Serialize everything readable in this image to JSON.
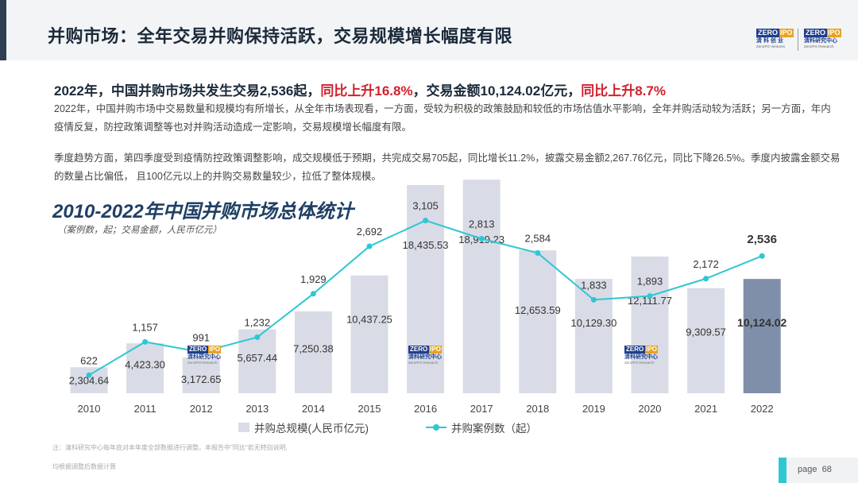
{
  "header": {
    "title": "并购市场：全年交易并购保持活跃，交易规模增长幅度有限",
    "logo_left": {
      "mark_a": "ZERO",
      "mark_b": "IPO",
      "cn": "清 科 创 业",
      "en": "ZeroIPO Ventures"
    },
    "logo_right": {
      "mark_a": "ZERO",
      "mark_b": "IPO",
      "cn": "清科研究中心",
      "en": "ZeroIPO Research"
    }
  },
  "headline": {
    "part1": "2022年，中国并购市场共发生交易2,536起，",
    "part2": "同比上升16.8%",
    "part3": "，交易金额10,124.02亿元，",
    "part4": "同比上升8.7%"
  },
  "paragraphs": {
    "p1": "2022年，中国并购市场中交易数量和规模均有所增长，从全年市场表现看，一方面，受较为积极的政策鼓励和较低的市场估值水平影响，全年并购活动较为活跃；另一方面，年内疫情反复，防控政策调整等也对并购活动造成一定影响，交易规模增长幅度有限。",
    "p2": "季度趋势方面，第四季度受到疫情防控政策调整影响，成交规模低于预期，共完成交易705起，同比增长11.2%，披露交易金额2,267.76亿元，同比下降26.5%。季度内披露金额交易的数量占比偏低， 且100亿元以上的并购交易数量较少，拉低了整体规模。"
  },
  "watermark": {
    "mark_a": "ZERO",
    "mark_b": "IPO",
    "cn": "清科研究中心",
    "en": "ZeroIPO Research"
  },
  "chart_data": {
    "type": "bar",
    "title": "2010-2022年中国并购市场总体统计",
    "subtitle": "（案例数，起；交易金额，人民币亿元）",
    "categories": [
      "2010",
      "2011",
      "2012",
      "2013",
      "2014",
      "2015",
      "2016",
      "2017",
      "2018",
      "2019",
      "2020",
      "2021",
      "2022"
    ],
    "series": [
      {
        "name": "并购总规模(人民币亿元)",
        "type": "bar",
        "values": [
          2304.64,
          4423.3,
          3172.65,
          5657.44,
          7250.38,
          10437.25,
          18435.53,
          18919.23,
          12653.59,
          10129.3,
          12111.77,
          9309.57,
          10124.02
        ],
        "labels": [
          "2,304.64",
          "4,423.30",
          "3,172.65",
          "5,657.44",
          "7,250.38",
          "10,437.25",
          "18,435.53",
          "18,919.23",
          "12,653.59",
          "10,129.30",
          "12,111.77",
          "9,309.57",
          "10,124.02"
        ]
      },
      {
        "name": "并购案例数（起）",
        "type": "line",
        "values": [
          622,
          1157,
          991,
          1232,
          1929,
          2692,
          3105,
          2813,
          2584,
          1833,
          1893,
          2172,
          2536
        ],
        "labels": [
          "622",
          "1,157",
          "991",
          "1,232",
          "1,929",
          "2,692",
          "3,105",
          "2,813",
          "2,584",
          "1,833",
          "1,893",
          "2,172",
          "2,536"
        ]
      }
    ],
    "colors": {
      "bar": "#d9dce6",
      "bar_highlight": "#7f8fa9",
      "line": "#2ec7d3"
    },
    "highlight_index": 12,
    "legend": "bottom"
  },
  "notes": {
    "n1": "注：清科研究中心每年底对本年度全部数据进行调整。本报告中\"同比\"若无特别说明,",
    "n2": "均根据调整后数据计算"
  },
  "page": {
    "label": "page",
    "number": "68"
  }
}
